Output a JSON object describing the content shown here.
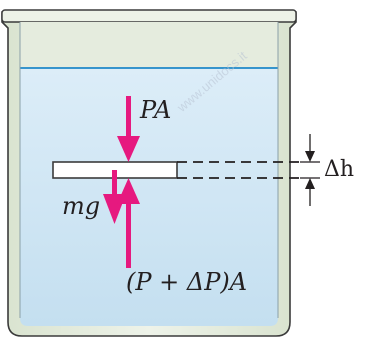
{
  "diagram": {
    "label_top_force": "PA",
    "label_weight": "mg",
    "label_bottom_force": "(P + ΔP)A",
    "label_thickness": "Δh",
    "watermark": "www.unidocs.it",
    "colors": {
      "water": "#cfe6f4",
      "water_surface": "#1e88c8",
      "beaker_frame": "#e3ebd9",
      "beaker_outline": "#3b3b3b",
      "plate_fill": "#ffffff",
      "arrow": "#e6197f",
      "text": "#231f20"
    }
  }
}
